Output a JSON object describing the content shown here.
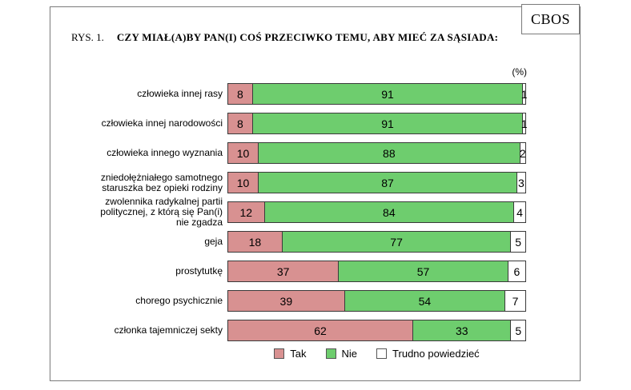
{
  "header": {
    "logo": "CBOS",
    "figure_label": "RYS. 1.",
    "title": "CZY MIAŁ(A)BY PAN(I) COŚ PRZECIWKO TEMU, ABY MIEĆ ZA SĄSIADA:",
    "unit_label": "(%)"
  },
  "chart_data": {
    "type": "bar",
    "orientation": "horizontal",
    "stacked": true,
    "title": "CZY MIAŁ(A)BY PAN(I) COŚ PRZECIWKO TEMU, ABY MIEĆ ZA SĄSIADA:",
    "unit": "%",
    "xlim": [
      0,
      100
    ],
    "grid": false,
    "legend_position": "bottom",
    "source": "CBOS",
    "categories": [
      "człowieka innej rasy",
      "człowieka innej narodowości",
      "człowieka innego wyznania",
      "zniedołężniałego samotnego\nstaruszka bez opieki rodziny",
      "zwolennika radykalnej partii\npolitycznej, z którą się Pan(i)\nnie zgadza",
      "geja",
      "prostytutkę",
      "chorego psychicznie",
      "członka tajemniczej sekty"
    ],
    "series": [
      {
        "name": "Tak",
        "color": "#D89191",
        "values": [
          8,
          8,
          10,
          10,
          12,
          18,
          37,
          39,
          62
        ]
      },
      {
        "name": "Nie",
        "color": "#6ECD6E",
        "values": [
          91,
          91,
          88,
          87,
          84,
          77,
          57,
          54,
          33
        ]
      },
      {
        "name": "Trudno powiedzieć",
        "color": "#FFFFFF",
        "values": [
          1,
          1,
          2,
          3,
          4,
          5,
          6,
          7,
          5
        ]
      }
    ]
  }
}
